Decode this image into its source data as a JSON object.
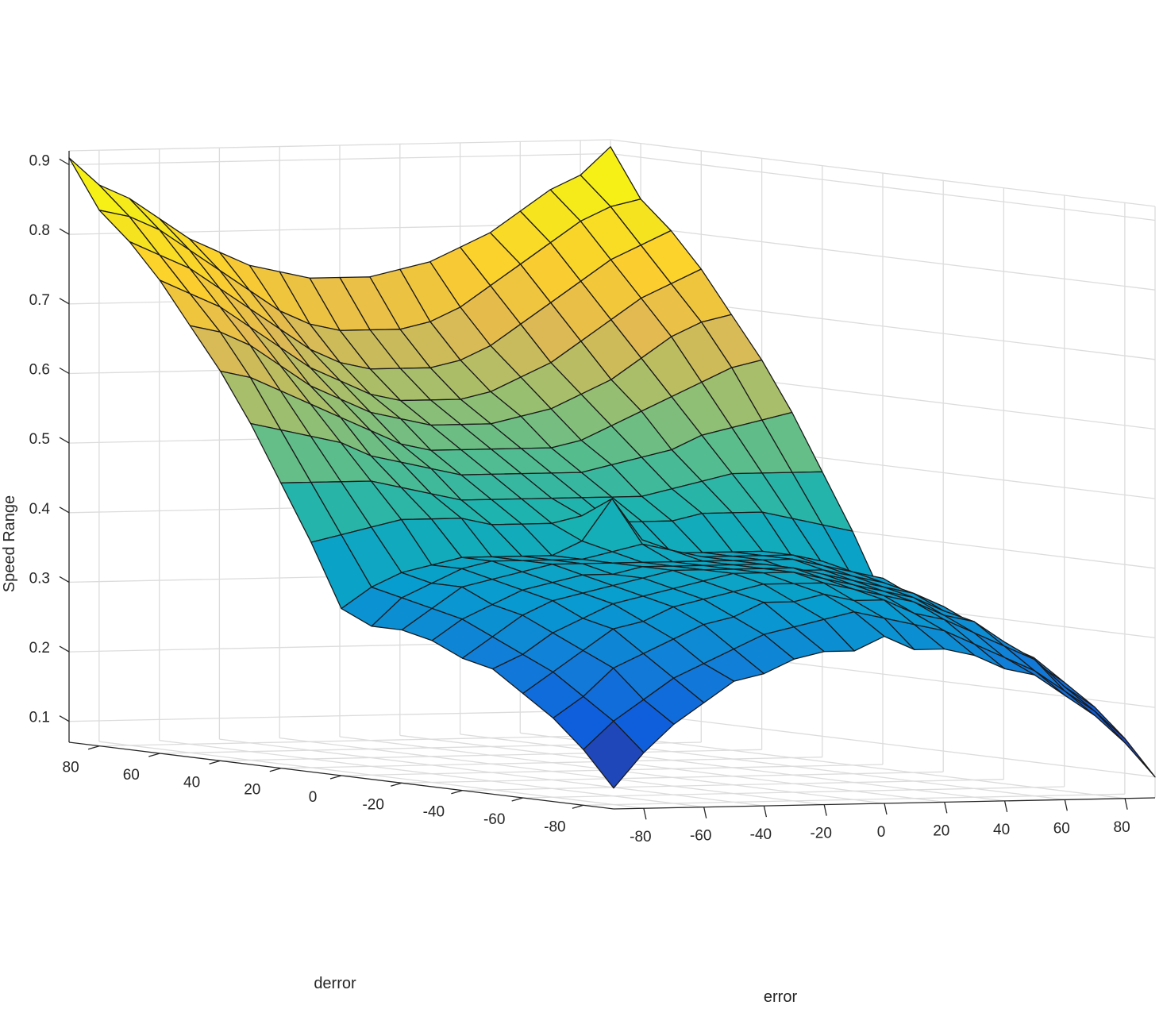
{
  "chart_data": {
    "type": "surface",
    "title": "",
    "xlabel": "error",
    "ylabel": "derror",
    "zlabel": "Speed Range",
    "xlim": [
      -90,
      90
    ],
    "ylim": [
      -90,
      90
    ],
    "zlim": [
      0.07,
      0.92
    ],
    "x_ticks": [
      -80,
      -60,
      -40,
      -20,
      0,
      20,
      40,
      60,
      80
    ],
    "y_ticks": [
      -80,
      -60,
      -40,
      -20,
      0,
      20,
      40,
      60,
      80
    ],
    "z_ticks": [
      0.1,
      0.2,
      0.3,
      0.4,
      0.5,
      0.6,
      0.7,
      0.8,
      0.9
    ],
    "x_tick_labels": [
      "-80",
      "-60",
      "-40",
      "-20",
      "0",
      "20",
      "40",
      "60",
      "80"
    ],
    "y_tick_labels": [
      "-80",
      "-60",
      "-40",
      "-20",
      "0",
      "20",
      "40",
      "60",
      "80"
    ],
    "z_tick_labels": [
      "0.1",
      "0.2",
      "0.3",
      "0.4",
      "0.5",
      "0.6",
      "0.7",
      "0.8",
      "0.9"
    ],
    "grid": true,
    "colormap": "parula",
    "x": [
      -90,
      -80,
      -70,
      -60,
      -50,
      -40,
      -30,
      -20,
      -10,
      0,
      10,
      20,
      30,
      40,
      50,
      60,
      70,
      80,
      90
    ],
    "y": [
      -90,
      -80,
      -70,
      -60,
      -50,
      -40,
      -30,
      -20,
      -10,
      0,
      10,
      20,
      30,
      40,
      50,
      60,
      70,
      80,
      90
    ],
    "z_description": "Speed Range over a 19x19 grid; z[i][j] is the value at y[i], x[j]",
    "z": [
      [
        0.1,
        0.15,
        0.19,
        0.22,
        0.25,
        0.26,
        0.28,
        0.29,
        0.29,
        0.31,
        0.29,
        0.29,
        0.28,
        0.26,
        0.25,
        0.22,
        0.19,
        0.15,
        0.1
      ],
      [
        0.15,
        0.19,
        0.22,
        0.25,
        0.27,
        0.29,
        0.31,
        0.32,
        0.33,
        0.34,
        0.33,
        0.32,
        0.31,
        0.29,
        0.27,
        0.25,
        0.22,
        0.19,
        0.15
      ],
      [
        0.19,
        0.22,
        0.26,
        0.28,
        0.3,
        0.32,
        0.33,
        0.35,
        0.35,
        0.36,
        0.35,
        0.35,
        0.33,
        0.32,
        0.3,
        0.28,
        0.26,
        0.22,
        0.19
      ],
      [
        0.22,
        0.25,
        0.28,
        0.31,
        0.32,
        0.34,
        0.35,
        0.36,
        0.37,
        0.37,
        0.37,
        0.36,
        0.35,
        0.34,
        0.32,
        0.31,
        0.28,
        0.25,
        0.22
      ],
      [
        0.25,
        0.27,
        0.3,
        0.32,
        0.34,
        0.35,
        0.36,
        0.37,
        0.38,
        0.38,
        0.38,
        0.37,
        0.36,
        0.35,
        0.34,
        0.32,
        0.3,
        0.27,
        0.25
      ],
      [
        0.26,
        0.29,
        0.32,
        0.34,
        0.35,
        0.36,
        0.37,
        0.38,
        0.38,
        0.38,
        0.38,
        0.38,
        0.37,
        0.36,
        0.35,
        0.34,
        0.32,
        0.29,
        0.26
      ],
      [
        0.28,
        0.31,
        0.33,
        0.35,
        0.36,
        0.37,
        0.37,
        0.38,
        0.38,
        0.38,
        0.38,
        0.38,
        0.37,
        0.37,
        0.36,
        0.35,
        0.33,
        0.31,
        0.28
      ],
      [
        0.29,
        0.32,
        0.35,
        0.36,
        0.37,
        0.38,
        0.38,
        0.38,
        0.38,
        0.38,
        0.38,
        0.38,
        0.38,
        0.38,
        0.37,
        0.36,
        0.35,
        0.32,
        0.29
      ],
      [
        0.29,
        0.33,
        0.35,
        0.37,
        0.38,
        0.38,
        0.38,
        0.38,
        0.39,
        0.4,
        0.39,
        0.38,
        0.38,
        0.38,
        0.38,
        0.37,
        0.35,
        0.33,
        0.29
      ],
      [
        0.31,
        0.34,
        0.36,
        0.37,
        0.38,
        0.38,
        0.38,
        0.38,
        0.4,
        0.46,
        0.4,
        0.38,
        0.38,
        0.38,
        0.38,
        0.37,
        0.36,
        0.34,
        0.31
      ],
      [
        0.4,
        0.41,
        0.42,
        0.43,
        0.43,
        0.43,
        0.42,
        0.42,
        0.42,
        0.43,
        0.42,
        0.42,
        0.42,
        0.43,
        0.43,
        0.43,
        0.42,
        0.41,
        0.4
      ],
      [
        0.48,
        0.48,
        0.48,
        0.48,
        0.47,
        0.46,
        0.45,
        0.45,
        0.45,
        0.45,
        0.45,
        0.45,
        0.45,
        0.46,
        0.47,
        0.48,
        0.48,
        0.48,
        0.48
      ],
      [
        0.56,
        0.55,
        0.54,
        0.53,
        0.51,
        0.5,
        0.49,
        0.48,
        0.48,
        0.48,
        0.48,
        0.48,
        0.49,
        0.5,
        0.51,
        0.53,
        0.54,
        0.55,
        0.56
      ],
      [
        0.63,
        0.62,
        0.6,
        0.58,
        0.56,
        0.54,
        0.52,
        0.51,
        0.51,
        0.51,
        0.51,
        0.51,
        0.52,
        0.54,
        0.56,
        0.58,
        0.6,
        0.62,
        0.63
      ],
      [
        0.69,
        0.68,
        0.66,
        0.63,
        0.6,
        0.58,
        0.56,
        0.55,
        0.54,
        0.54,
        0.54,
        0.55,
        0.56,
        0.58,
        0.6,
        0.63,
        0.66,
        0.68,
        0.69
      ],
      [
        0.75,
        0.73,
        0.71,
        0.68,
        0.65,
        0.62,
        0.6,
        0.58,
        0.57,
        0.57,
        0.57,
        0.58,
        0.6,
        0.62,
        0.65,
        0.68,
        0.71,
        0.73,
        0.75
      ],
      [
        0.8,
        0.78,
        0.76,
        0.73,
        0.7,
        0.67,
        0.64,
        0.62,
        0.61,
        0.61,
        0.61,
        0.62,
        0.64,
        0.67,
        0.7,
        0.73,
        0.76,
        0.78,
        0.8
      ],
      [
        0.84,
        0.83,
        0.81,
        0.78,
        0.75,
        0.72,
        0.69,
        0.67,
        0.66,
        0.66,
        0.66,
        0.67,
        0.69,
        0.72,
        0.75,
        0.78,
        0.81,
        0.83,
        0.84
      ],
      [
        0.91,
        0.87,
        0.85,
        0.82,
        0.79,
        0.77,
        0.75,
        0.74,
        0.73,
        0.73,
        0.73,
        0.74,
        0.75,
        0.77,
        0.79,
        0.82,
        0.85,
        0.87,
        0.91
      ]
    ]
  }
}
